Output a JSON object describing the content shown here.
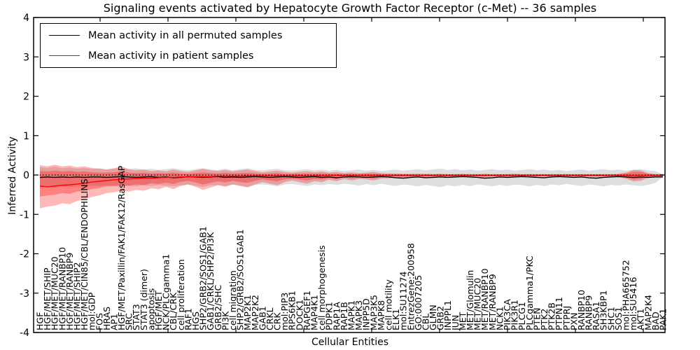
{
  "figure": {
    "title": "Signaling events activated by Hepatocyte Growth Factor Receptor (c-Met) -- 36 samples"
  },
  "legend": {
    "items": [
      {
        "label": "Mean activity in all permuted samples",
        "color": "#000000"
      },
      {
        "label": "Mean activity in patient samples",
        "color": "#ff0000"
      }
    ]
  },
  "colors": {
    "patient_line": "#ff0000",
    "permuted_line": "#000000",
    "patient_band": "#ff0000",
    "permuted_band": "#aaaaaa",
    "zero_line": "#000000",
    "spine": "#000000"
  },
  "chart_data": {
    "type": "line",
    "title": "Signaling events activated by Hepatocyte Growth Factor Receptor (c-Met) -- 36 samples",
    "xlabel": "Cellular Entities",
    "ylabel": "Inferred Activity",
    "ylim": [
      -4,
      4
    ],
    "yticks": [
      4,
      3,
      2,
      1,
      0,
      -1,
      -2,
      -3,
      -4
    ],
    "grid": false,
    "legend_position": "upper left",
    "zero_line": {
      "value": 0,
      "style": "dotted",
      "color": "#000000"
    },
    "categories": [
      "HGF",
      "HGF/MET/SHIP",
      "HGF/MET/MUC20",
      "HGF/MET/RANBP10",
      "HGF/MET/RANBP9",
      "HGF/MET/SHIP2",
      "HGF/MET/CIN85/CBL/ENDOPHILINS",
      "mol:GDP",
      "FOS",
      "HRAS",
      "AP1",
      "HGF/MET/Paxillin/FAK1/FAK12/RasGAP",
      "SRC",
      "STAT3",
      "STAT3 (dimer)",
      "apoptosis",
      "HGF/MET",
      "NCK/PLCgamma1",
      "CBL/CRK",
      "cell proliferation",
      "RAF1",
      "HGS",
      "SHP2/GRB2/SOS1/GAB1",
      "GAB1/CRKL/SHP2/PI3K",
      "GRB2/SHC",
      "PI3K",
      "cell migration",
      "SHP2/GRB2/SOS1GAB1",
      "MAP2K1",
      "MAP2K2",
      "GAB1",
      "CRKL",
      "CRK",
      "mol:PIP3",
      "RPS6KB1",
      "DOCK1",
      "RAPGEF1",
      "MAP4K1",
      "cell morphogenesis",
      "PDPK1",
      "RAP1A",
      "RAP1B",
      "MAPK1",
      "MAPK3",
      "INPP5D",
      "MAP3K5",
      "MAPK8",
      "cell motility",
      "ELK1",
      "mol:SU11274",
      "EntrezGene:200958",
      "GO:0007205",
      "CBL",
      "GLMN",
      "GRB2",
      "INPPL1",
      "JUN",
      "MET",
      "MET/Glomulin",
      "MET/MUC20",
      "MET/RANBP10",
      "MET/RANBP9",
      "NCK1",
      "PIK3CA",
      "PIK3R1",
      "PLCG1",
      "PLCgamma1/PKC",
      "PTEN",
      "PTK2",
      "PTK2B",
      "PTPN11",
      "PTPRJ",
      "PXN",
      "RANBP10",
      "RANBP9",
      "RASA1",
      "SH3KBP1",
      "SHC1",
      "SOS1",
      "mol:PHA665752",
      "mol:SU5416",
      "AKT1",
      "MAP2K4",
      "BAD",
      "PAK1"
    ],
    "series": [
      {
        "name": "Mean activity in all permuted samples",
        "color": "#000000",
        "values": [
          -0.06,
          -0.05,
          -0.06,
          -0.05,
          -0.06,
          -0.05,
          -0.06,
          -0.05,
          -0.05,
          -0.06,
          -0.05,
          -0.04,
          -0.05,
          -0.06,
          -0.05,
          -0.04,
          -0.06,
          -0.05,
          -0.07,
          -0.06,
          -0.04,
          -0.05,
          -0.06,
          -0.05,
          -0.04,
          -0.06,
          -0.05,
          -0.06,
          -0.05,
          -0.04,
          -0.05,
          -0.06,
          -0.05,
          -0.04,
          -0.05,
          -0.06,
          -0.05,
          -0.04,
          -0.06,
          -0.05,
          -0.07,
          -0.05,
          -0.04,
          -0.05,
          -0.06,
          -0.05,
          -0.04,
          -0.05,
          -0.07,
          -0.08,
          -0.06,
          -0.05,
          -0.07,
          -0.06,
          -0.05,
          -0.06,
          -0.05,
          -0.04,
          -0.05,
          -0.06,
          -0.08,
          -0.07,
          -0.05,
          -0.06,
          -0.05,
          -0.04,
          -0.05,
          -0.06,
          -0.07,
          -0.05,
          -0.04,
          -0.05,
          -0.06,
          -0.05,
          -0.07,
          -0.08,
          -0.06,
          -0.05,
          -0.04,
          -0.05,
          -0.06,
          -0.05,
          -0.06,
          -0.05,
          -0.05
        ]
      },
      {
        "name": "Mean activity in patient samples",
        "color": "#ff0000",
        "values": [
          -0.28,
          -0.3,
          -0.28,
          -0.26,
          -0.25,
          -0.23,
          -0.21,
          -0.18,
          -0.16,
          -0.14,
          -0.12,
          -0.11,
          -0.1,
          -0.09,
          -0.08,
          -0.08,
          -0.07,
          -0.06,
          -0.06,
          -0.05,
          -0.05,
          -0.04,
          -0.04,
          -0.04,
          -0.03,
          -0.03,
          -0.03,
          -0.03,
          -0.02,
          -0.02,
          -0.02,
          -0.02,
          -0.02,
          -0.02,
          -0.02,
          -0.02,
          -0.02,
          -0.02,
          -0.02,
          -0.01,
          -0.01,
          -0.01,
          -0.01,
          -0.01,
          -0.01,
          -0.01,
          -0.01,
          -0.01,
          -0.01,
          -0.01,
          -0.01,
          -0.01,
          -0.01,
          -0.01,
          -0.01,
          -0.01,
          -0.01,
          -0.01,
          -0.01,
          -0.01,
          -0.01,
          -0.01,
          -0.01,
          -0.01,
          -0.01,
          -0.01,
          -0.01,
          -0.01,
          -0.01,
          -0.01,
          -0.01,
          -0.01,
          -0.01,
          -0.01,
          -0.01,
          -0.01,
          -0.01,
          -0.01,
          -0.01,
          -0.01,
          -0.01,
          -0.01,
          -0.01,
          -0.01,
          -0.01
        ]
      }
    ],
    "bands": [
      {
        "name": "permuted-samples-range",
        "color": "#999999",
        "opacity": 0.32,
        "upper": [
          0.2,
          0.18,
          0.21,
          0.17,
          0.19,
          0.16,
          0.18,
          0.15,
          0.17,
          0.14,
          0.16,
          0.18,
          0.15,
          0.17,
          0.14,
          0.16,
          0.13,
          0.15,
          0.17,
          0.14,
          0.12,
          0.15,
          0.17,
          0.14,
          0.13,
          0.16,
          0.12,
          0.15,
          0.17,
          0.13,
          0.12,
          0.14,
          0.16,
          0.12,
          0.11,
          0.13,
          0.15,
          0.12,
          0.14,
          0.11,
          0.13,
          0.1,
          0.12,
          0.14,
          0.11,
          0.13,
          0.1,
          0.12,
          0.14,
          0.11,
          0.13,
          0.15,
          0.12,
          0.14,
          0.16,
          0.13,
          0.15,
          0.12,
          0.14,
          0.11,
          0.13,
          0.15,
          0.12,
          0.14,
          0.11,
          0.13,
          0.15,
          0.12,
          0.14,
          0.11,
          0.13,
          0.1,
          0.12,
          0.14,
          0.11,
          0.13,
          0.15,
          0.12,
          0.14,
          0.11,
          0.13,
          0.15,
          0.12,
          0.1,
          0.02
        ],
        "lower": [
          -0.32,
          -0.3,
          -0.33,
          -0.29,
          -0.31,
          -0.28,
          -0.3,
          -0.27,
          -0.29,
          -0.26,
          -0.28,
          -0.3,
          -0.27,
          -0.29,
          -0.26,
          -0.28,
          -0.25,
          -0.27,
          -0.29,
          -0.26,
          -0.24,
          -0.27,
          -0.3,
          -0.26,
          -0.25,
          -0.28,
          -0.24,
          -0.27,
          -0.3,
          -0.25,
          -0.24,
          -0.26,
          -0.29,
          -0.24,
          -0.23,
          -0.25,
          -0.28,
          -0.24,
          -0.26,
          -0.23,
          -0.25,
          -0.22,
          -0.24,
          -0.27,
          -0.23,
          -0.26,
          -0.22,
          -0.25,
          -0.28,
          -0.24,
          -0.26,
          -0.29,
          -0.25,
          -0.28,
          -0.31,
          -0.26,
          -0.29,
          -0.25,
          -0.28,
          -0.24,
          -0.26,
          -0.29,
          -0.25,
          -0.28,
          -0.24,
          -0.26,
          -0.29,
          -0.25,
          -0.28,
          -0.24,
          -0.26,
          -0.23,
          -0.25,
          -0.28,
          -0.24,
          -0.26,
          -0.29,
          -0.25,
          -0.27,
          -0.24,
          -0.26,
          -0.28,
          -0.25,
          -0.2,
          -0.05
        ]
      },
      {
        "name": "patient-samples-range-outer",
        "color": "#ff0000",
        "opacity": 0.28,
        "upper": [
          0.25,
          0.22,
          0.26,
          0.22,
          0.24,
          0.2,
          0.22,
          0.18,
          0.16,
          0.14,
          0.17,
          0.22,
          0.15,
          0.12,
          0.14,
          0.1,
          0.12,
          0.09,
          0.14,
          0.1,
          0.08,
          0.12,
          0.16,
          0.12,
          0.1,
          0.13,
          0.09,
          0.12,
          0.14,
          0.1,
          0.07,
          0.09,
          0.11,
          0.08,
          0.06,
          0.08,
          0.1,
          0.07,
          0.09,
          0.06,
          0.08,
          0.05,
          0.07,
          0.05,
          0.06,
          0.08,
          0.05,
          0.04,
          0.04,
          0.03,
          0.03,
          0.03,
          0.03,
          0.02,
          0.03,
          0.02,
          0.02,
          0.03,
          0.02,
          0.02,
          0.03,
          0.02,
          0.02,
          0.02,
          0.03,
          0.02,
          0.02,
          0.02,
          0.02,
          0.02,
          0.02,
          0.02,
          0.02,
          0.02,
          0.02,
          0.02,
          0.02,
          0.02,
          0.03,
          0.06,
          0.13,
          0.12,
          0.05,
          0.02,
          0.02
        ],
        "lower": [
          -0.85,
          -0.8,
          -0.78,
          -0.72,
          -0.74,
          -0.66,
          -0.62,
          -0.56,
          -0.52,
          -0.46,
          -0.44,
          -0.4,
          -0.42,
          -0.38,
          -0.4,
          -0.34,
          -0.36,
          -0.3,
          -0.36,
          -0.28,
          -0.24,
          -0.3,
          -0.38,
          -0.32,
          -0.26,
          -0.3,
          -0.24,
          -0.28,
          -0.32,
          -0.24,
          -0.18,
          -0.22,
          -0.26,
          -0.18,
          -0.14,
          -0.18,
          -0.22,
          -0.16,
          -0.18,
          -0.12,
          -0.16,
          -0.1,
          -0.14,
          -0.1,
          -0.11,
          -0.14,
          -0.09,
          -0.08,
          -0.07,
          -0.06,
          -0.06,
          -0.05,
          -0.06,
          -0.05,
          -0.05,
          -0.05,
          -0.04,
          -0.05,
          -0.04,
          -0.04,
          -0.05,
          -0.04,
          -0.04,
          -0.04,
          -0.05,
          -0.04,
          -0.04,
          -0.04,
          -0.04,
          -0.04,
          -0.04,
          -0.04,
          -0.04,
          -0.04,
          -0.04,
          -0.04,
          -0.04,
          -0.04,
          -0.05,
          -0.09,
          -0.16,
          -0.15,
          -0.08,
          -0.05,
          -0.04
        ]
      },
      {
        "name": "patient-samples-range-inner",
        "color": "#ff0000",
        "opacity": 0.3,
        "upper": [
          0.1,
          0.09,
          0.11,
          0.09,
          0.1,
          0.08,
          0.09,
          0.07,
          0.06,
          0.06,
          0.07,
          0.1,
          0.06,
          0.05,
          0.06,
          0.04,
          0.05,
          0.04,
          0.06,
          0.04,
          0.03,
          0.05,
          0.07,
          0.05,
          0.04,
          0.06,
          0.04,
          0.05,
          0.06,
          0.04,
          0.03,
          0.04,
          0.05,
          0.03,
          0.03,
          0.03,
          0.04,
          0.03,
          0.04,
          0.03,
          0.03,
          0.02,
          0.03,
          0.02,
          0.03,
          0.03,
          0.02,
          0.02,
          0.02,
          0.02,
          0.02,
          0.02,
          0.02,
          0.02,
          0.02,
          0.02,
          0.02,
          0.02,
          0.02,
          0.02,
          0.02,
          0.02,
          0.02,
          0.02,
          0.02,
          0.02,
          0.02,
          0.02,
          0.02,
          0.02,
          0.02,
          0.02,
          0.02,
          0.02,
          0.02,
          0.02,
          0.02,
          0.02,
          0.02,
          0.04,
          0.08,
          0.08,
          0.03,
          0.02,
          0.02
        ],
        "lower": [
          -0.55,
          -0.52,
          -0.5,
          -0.46,
          -0.48,
          -0.42,
          -0.4,
          -0.36,
          -0.33,
          -0.29,
          -0.28,
          -0.25,
          -0.27,
          -0.24,
          -0.26,
          -0.21,
          -0.23,
          -0.19,
          -0.23,
          -0.17,
          -0.15,
          -0.19,
          -0.24,
          -0.2,
          -0.16,
          -0.19,
          -0.15,
          -0.18,
          -0.2,
          -0.15,
          -0.11,
          -0.14,
          -0.16,
          -0.11,
          -0.09,
          -0.11,
          -0.14,
          -0.1,
          -0.11,
          -0.08,
          -0.1,
          -0.06,
          -0.09,
          -0.06,
          -0.07,
          -0.09,
          -0.06,
          -0.05,
          -0.04,
          -0.04,
          -0.04,
          -0.04,
          -0.04,
          -0.04,
          -0.04,
          -0.04,
          -0.04,
          -0.04,
          -0.04,
          -0.04,
          -0.04,
          -0.04,
          -0.04,
          -0.04,
          -0.04,
          -0.04,
          -0.04,
          -0.04,
          -0.04,
          -0.04,
          -0.04,
          -0.04,
          -0.04,
          -0.04,
          -0.04,
          -0.04,
          -0.04,
          -0.04,
          -0.04,
          -0.07,
          -0.11,
          -0.1,
          -0.05,
          -0.04,
          -0.03
        ]
      }
    ]
  }
}
